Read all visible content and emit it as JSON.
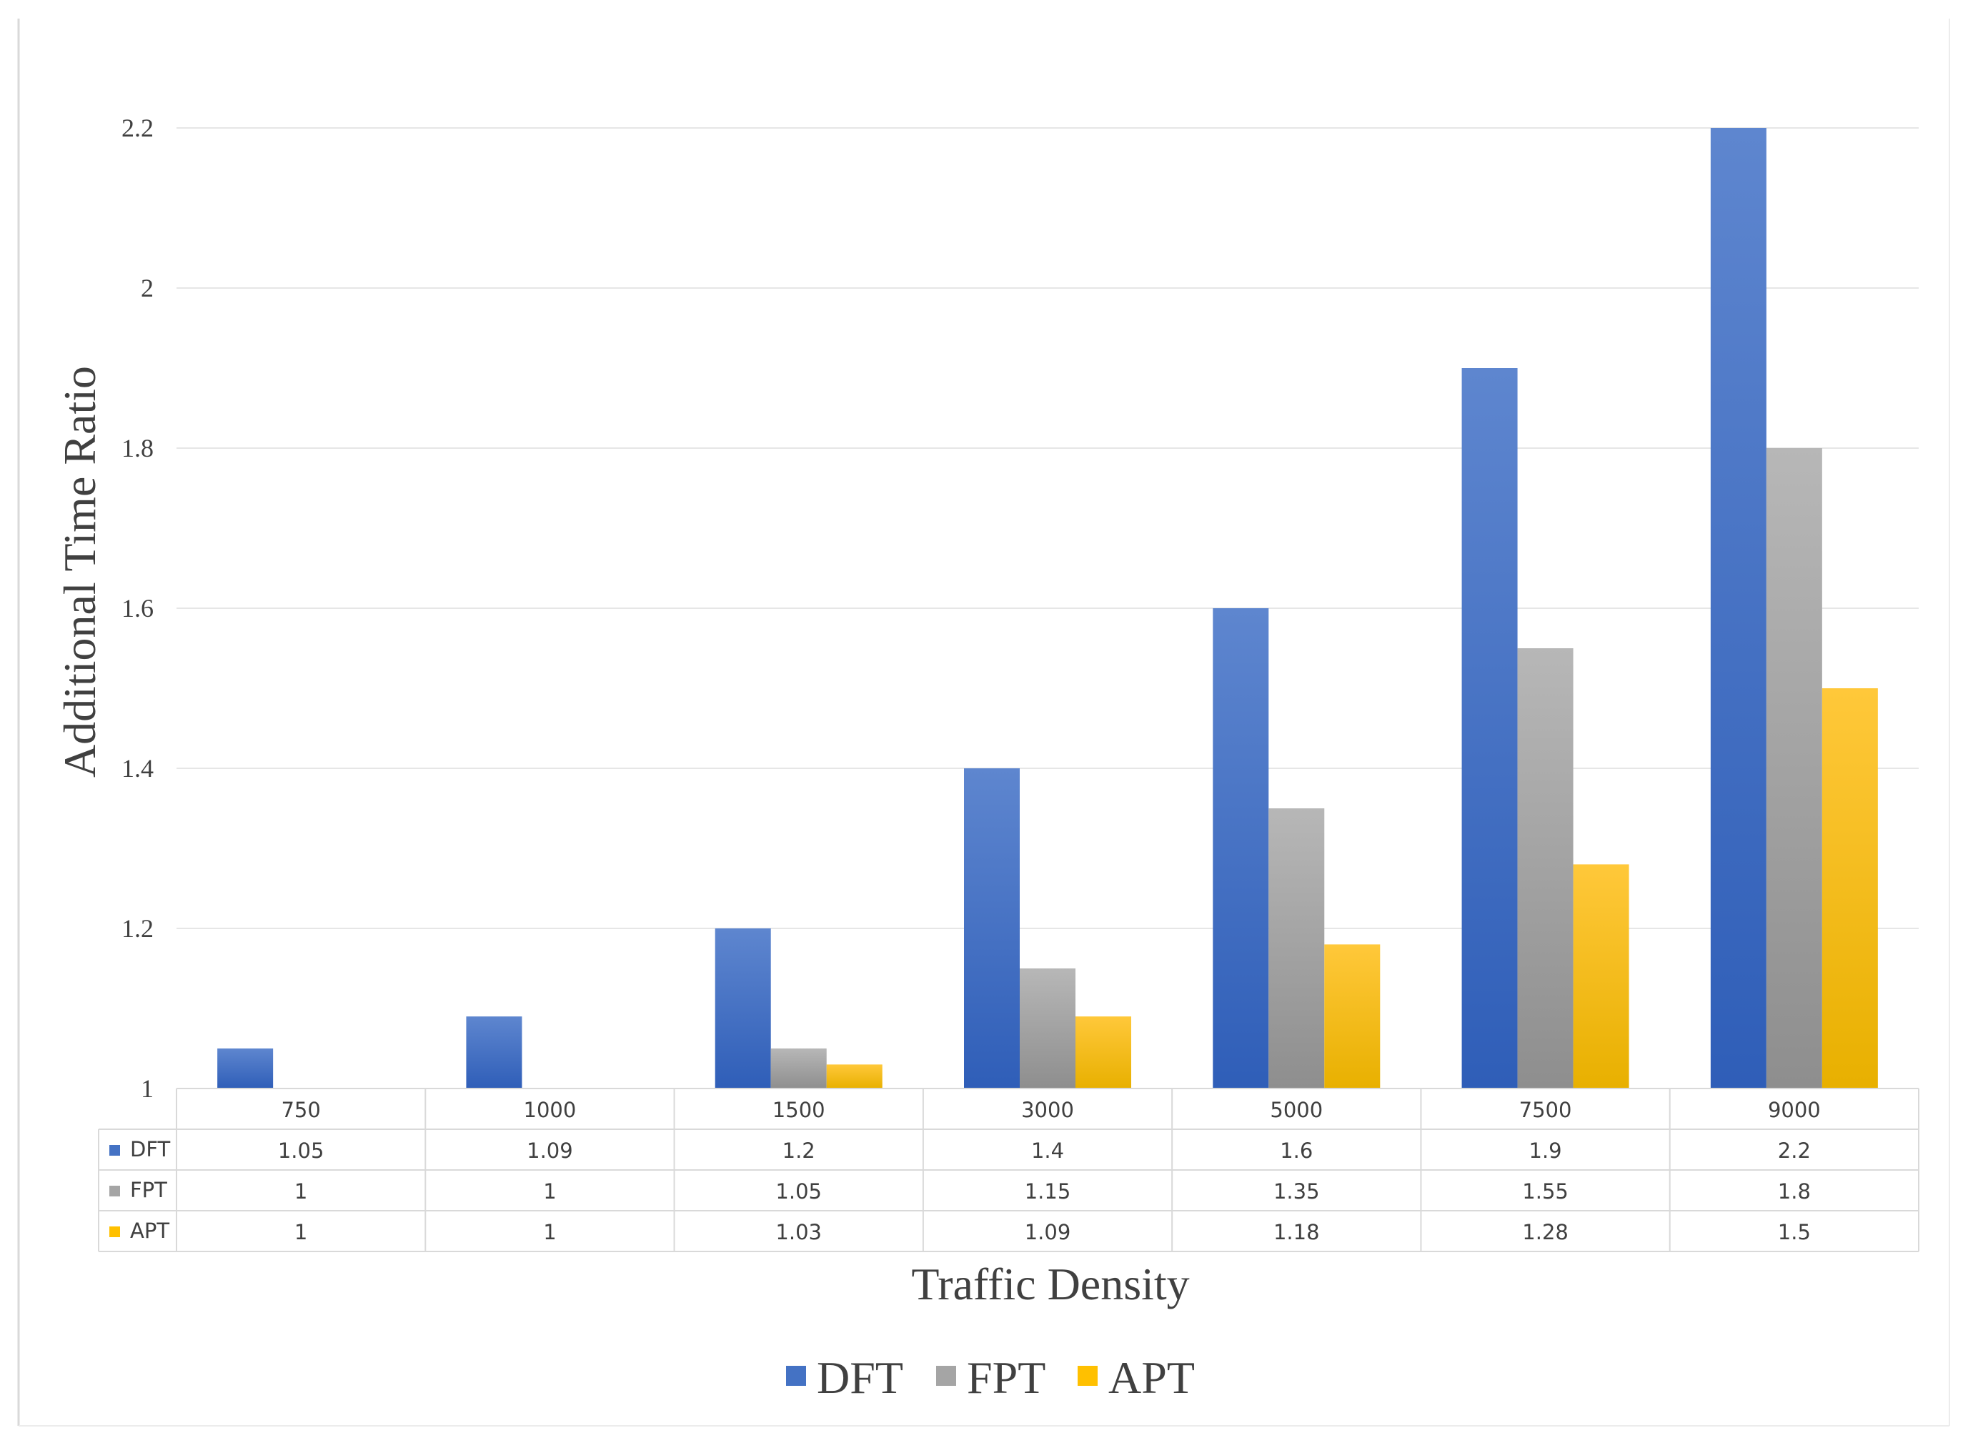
{
  "chart_data": {
    "type": "bar",
    "title": "",
    "xlabel": "Traffic Density",
    "ylabel": "Additional Time Ratio",
    "ylim": [
      1,
      2.2
    ],
    "yticks": [
      "1",
      "1.2",
      "1.4",
      "1.6",
      "1.8",
      "2",
      "2.2"
    ],
    "grid": true,
    "legend_position": "bottom",
    "categories": [
      "750",
      "1000",
      "1500",
      "3000",
      "5000",
      "7500",
      "9000"
    ],
    "series": [
      {
        "name": "DFT",
        "color": "#4472C4",
        "values": [
          1.05,
          1.09,
          1.2,
          1.4,
          1.6,
          1.9,
          2.2
        ],
        "table_labels": [
          "1.05",
          "1.09",
          "1.2",
          "1.4",
          "1.6",
          "1.9",
          "2.2"
        ]
      },
      {
        "name": "FPT",
        "color": "#A5A5A5",
        "values": [
          1,
          1,
          1.05,
          1.15,
          1.35,
          1.55,
          1.8
        ],
        "table_labels": [
          "1",
          "1",
          "1.05",
          "1.15",
          "1.35",
          "1.55",
          "1.8"
        ]
      },
      {
        "name": "APT",
        "color": "#FFC000",
        "values": [
          1,
          1,
          1.03,
          1.09,
          1.18,
          1.28,
          1.5
        ],
        "table_labels": [
          "1",
          "1",
          "1.03",
          "1.09",
          "1.18",
          "1.28",
          "1.5"
        ]
      }
    ]
  }
}
